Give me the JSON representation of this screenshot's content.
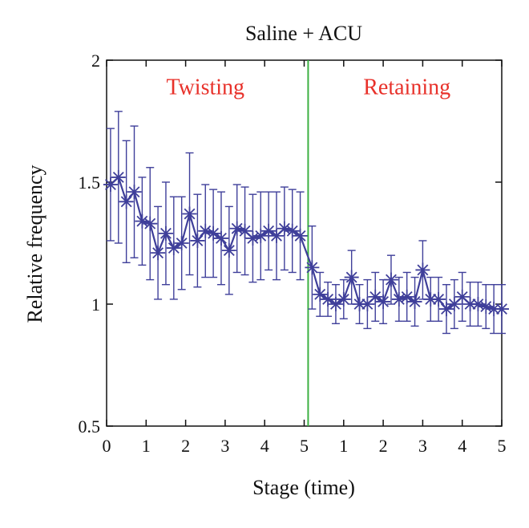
{
  "chart_data": {
    "type": "line",
    "title": "Saline + ACU",
    "xlabel": "Stage (time)",
    "ylabel": "Relative frequency",
    "ylim": [
      0.5,
      2
    ],
    "xlim": [
      0,
      10
    ],
    "yticks": [
      {
        "value": 0.5,
        "label": "0.5"
      },
      {
        "value": 1,
        "label": "1"
      },
      {
        "value": 1.5,
        "label": "1.5"
      },
      {
        "value": 2,
        "label": "2"
      }
    ],
    "xticks": [
      {
        "value": 0,
        "label": "0"
      },
      {
        "value": 1,
        "label": "1"
      },
      {
        "value": 2,
        "label": "2"
      },
      {
        "value": 3,
        "label": "3"
      },
      {
        "value": 4,
        "label": "4"
      },
      {
        "value": 5,
        "label": "5"
      },
      {
        "value": 6,
        "label": "1"
      },
      {
        "value": 7,
        "label": "2"
      },
      {
        "value": 8,
        "label": "3"
      },
      {
        "value": 9,
        "label": "4"
      },
      {
        "value": 10,
        "label": "5"
      }
    ],
    "divider": {
      "x": 5.1,
      "color": "#3cb043"
    },
    "annotations": [
      {
        "text": "Twisting",
        "x": 2.5,
        "y": 1.86,
        "color": "#e8312a"
      },
      {
        "text": "Retaining",
        "x": 7.6,
        "y": 1.86,
        "color": "#e8312a"
      }
    ],
    "grid": false,
    "series": [
      {
        "color": "#3f3f9a",
        "x": [
          0.1,
          0.3,
          0.5,
          0.7,
          0.9,
          1.1,
          1.3,
          1.5,
          1.7,
          1.9,
          2.1,
          2.3,
          2.5,
          2.7,
          2.9,
          3.1,
          3.3,
          3.5,
          3.7,
          3.9,
          4.1,
          4.3,
          4.5,
          4.7,
          4.9,
          5.2,
          5.4,
          5.6,
          5.8,
          6.0,
          6.2,
          6.4,
          6.6,
          6.8,
          7.0,
          7.2,
          7.4,
          7.6,
          7.8,
          8.0,
          8.2,
          8.4,
          8.6,
          8.8,
          9.0,
          9.2,
          9.4,
          9.6,
          9.8,
          10.0
        ],
        "y": [
          1.49,
          1.52,
          1.42,
          1.46,
          1.34,
          1.33,
          1.21,
          1.29,
          1.23,
          1.25,
          1.37,
          1.26,
          1.3,
          1.29,
          1.27,
          1.22,
          1.31,
          1.3,
          1.27,
          1.28,
          1.3,
          1.28,
          1.31,
          1.3,
          1.28,
          1.15,
          1.04,
          1.02,
          1.0,
          1.02,
          1.11,
          1.0,
          1.0,
          1.03,
          1.01,
          1.1,
          1.02,
          1.03,
          1.01,
          1.14,
          1.02,
          1.02,
          0.98,
          1.0,
          1.03,
          1.0,
          1.0,
          0.99,
          0.98,
          0.98
        ],
        "err": [
          0.23,
          0.27,
          0.25,
          0.27,
          0.18,
          0.23,
          0.19,
          0.21,
          0.21,
          0.19,
          0.25,
          0.19,
          0.19,
          0.18,
          0.19,
          0.18,
          0.18,
          0.18,
          0.18,
          0.18,
          0.16,
          0.18,
          0.17,
          0.17,
          0.18,
          0.17,
          0.09,
          0.07,
          0.08,
          0.08,
          0.11,
          0.08,
          0.1,
          0.1,
          0.09,
          0.1,
          0.09,
          0.1,
          0.1,
          0.12,
          0.09,
          0.09,
          0.1,
          0.1,
          0.1,
          0.09,
          0.09,
          0.09,
          0.1,
          0.1
        ]
      }
    ]
  }
}
